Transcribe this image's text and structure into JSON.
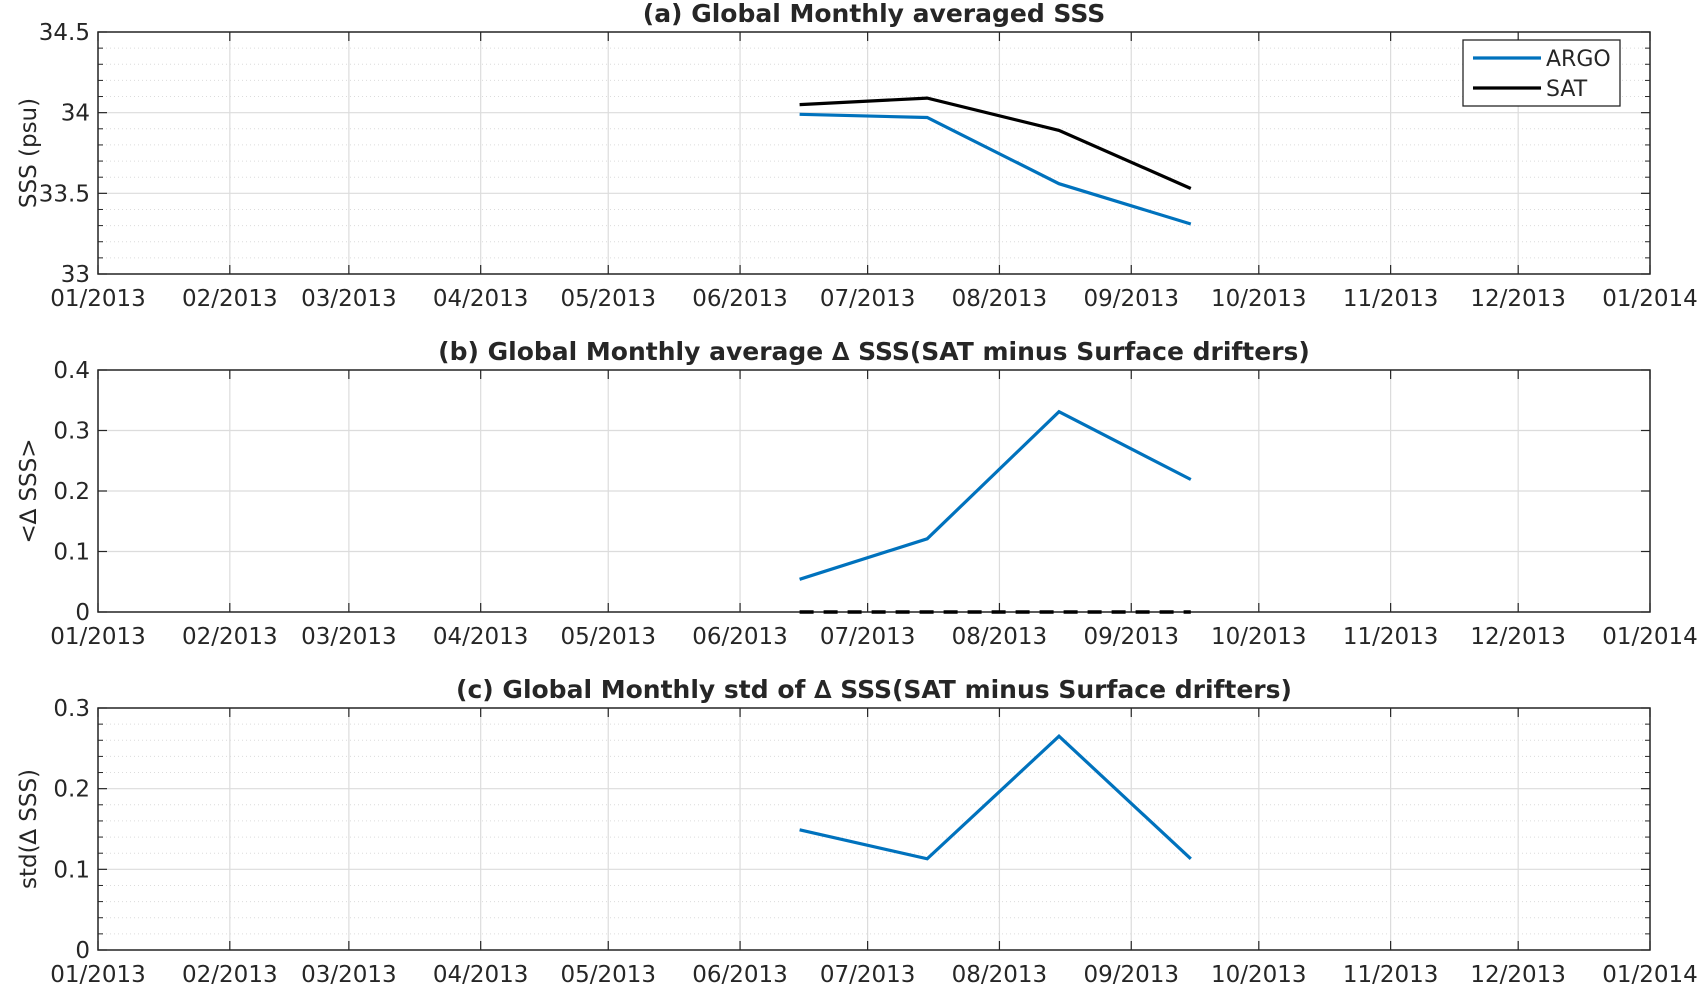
{
  "colors": {
    "argo": "#0072BD",
    "sat": "#000000",
    "axis": "#262626",
    "grid": "#dcdcdc"
  },
  "chart_data": [
    {
      "type": "line",
      "title": "(a) Global Monthly averaged SSS",
      "ylabel": "SSS (psu)",
      "xlabel": "",
      "x_ticks": [
        "01/2013",
        "02/2013",
        "03/2013",
        "04/2013",
        "05/2013",
        "06/2013",
        "07/2013",
        "08/2013",
        "09/2013",
        "10/2013",
        "11/2013",
        "12/2013",
        "01/2014"
      ],
      "y_ticks": [
        "33",
        "33.5",
        "34",
        "34.5"
      ],
      "ylim": [
        33,
        34.5
      ],
      "grid": true,
      "minor_grid": true,
      "legend": {
        "position": "top-right",
        "entries": [
          "ARGO",
          "SAT"
        ]
      },
      "series": [
        {
          "name": "ARGO",
          "color": "argo",
          "style": "solid",
          "x": [
            "2013-06-15",
            "2013-07-15",
            "2013-08-15",
            "2013-09-15"
          ],
          "y": [
            33.99,
            33.97,
            33.56,
            33.31
          ]
        },
        {
          "name": "SAT",
          "color": "sat",
          "style": "solid",
          "x": [
            "2013-06-15",
            "2013-07-15",
            "2013-08-15",
            "2013-09-15"
          ],
          "y": [
            34.05,
            34.09,
            33.89,
            33.53
          ]
        }
      ]
    },
    {
      "type": "line",
      "title": "(b) Global Monthly average ∆ SSS(SAT minus Surface drifters)",
      "ylabel": "<∆ SSS>",
      "xlabel": "",
      "x_ticks": [
        "01/2013",
        "02/2013",
        "03/2013",
        "04/2013",
        "05/2013",
        "06/2013",
        "07/2013",
        "08/2013",
        "09/2013",
        "10/2013",
        "11/2013",
        "12/2013",
        "01/2014"
      ],
      "y_ticks": [
        "0",
        "0.1",
        "0.2",
        "0.3",
        "0.4"
      ],
      "ylim": [
        0,
        0.4
      ],
      "grid": true,
      "minor_grid": false,
      "series": [
        {
          "color": "argo",
          "style": "solid",
          "x": [
            "2013-06-15",
            "2013-07-15",
            "2013-08-15",
            "2013-09-15"
          ],
          "y": [
            0.054,
            0.121,
            0.331,
            0.219
          ]
        },
        {
          "color": "sat",
          "style": "dashed",
          "x": [
            "2013-06-15",
            "2013-07-15",
            "2013-08-15",
            "2013-09-15"
          ],
          "y": [
            0,
            0,
            0,
            0
          ]
        }
      ]
    },
    {
      "type": "line",
      "title": "(c) Global Monthly std of ∆ SSS(SAT minus Surface drifters)",
      "ylabel": "std(∆ SSS)",
      "xlabel": "",
      "x_ticks": [
        "01/2013",
        "02/2013",
        "03/2013",
        "04/2013",
        "05/2013",
        "06/2013",
        "07/2013",
        "08/2013",
        "09/2013",
        "10/2013",
        "11/2013",
        "12/2013",
        "01/2014"
      ],
      "y_ticks": [
        "0",
        "0.1",
        "0.2",
        "0.3"
      ],
      "ylim": [
        0,
        0.3
      ],
      "grid": true,
      "minor_grid": true,
      "series": [
        {
          "color": "argo",
          "style": "solid",
          "x": [
            "2013-06-15",
            "2013-07-15",
            "2013-08-15",
            "2013-09-15"
          ],
          "y": [
            0.149,
            0.113,
            0.265,
            0.113
          ]
        }
      ]
    }
  ]
}
